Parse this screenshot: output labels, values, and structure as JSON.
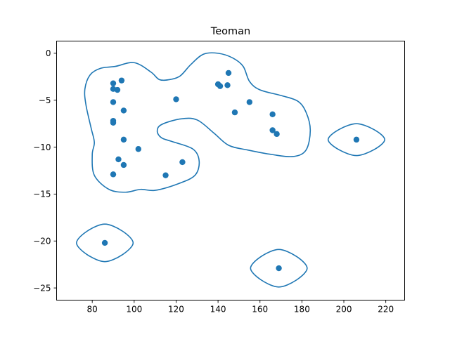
{
  "chart_data": {
    "type": "scatter",
    "title": "Teoman",
    "xlabel": "",
    "ylabel": "",
    "xlim": [
      63,
      229
    ],
    "ylim": [
      -26.3,
      1.3
    ],
    "xticks": [
      80,
      100,
      120,
      140,
      160,
      180,
      200,
      220
    ],
    "yticks": [
      0,
      -5,
      -10,
      -15,
      -20,
      -25
    ],
    "grid": false,
    "colors": {
      "series": "#1f77b4",
      "axes": "#000000",
      "background": "#ffffff"
    },
    "series": [
      {
        "points": [
          [
            86,
            -20.2
          ],
          [
            90,
            -3.2
          ],
          [
            90,
            -3.8
          ],
          [
            90,
            -5.2
          ],
          [
            90,
            -7.2
          ],
          [
            90,
            -7.4
          ],
          [
            90,
            -12.9
          ],
          [
            92,
            -3.9
          ],
          [
            92.5,
            -11.3
          ],
          [
            94,
            -2.9
          ],
          [
            95,
            -6.1
          ],
          [
            95,
            -9.2
          ],
          [
            95,
            -11.9
          ],
          [
            102,
            -10.2
          ],
          [
            115,
            -13
          ],
          [
            120,
            -4.9
          ],
          [
            123,
            -11.6
          ],
          [
            140,
            -3.3
          ],
          [
            141,
            -3.5
          ],
          [
            144.5,
            -3.4
          ],
          [
            145,
            -2.1
          ],
          [
            148,
            -6.3
          ],
          [
            155,
            -5.2
          ],
          [
            166,
            -6.5
          ],
          [
            166,
            -8.2
          ],
          [
            168,
            -8.6
          ],
          [
            169,
            -22.9
          ],
          [
            206,
            -9.2
          ]
        ]
      }
    ],
    "contours": [
      {
        "closed": true,
        "points": [
          [
            91,
            -1.4
          ],
          [
            100,
            -1
          ],
          [
            108,
            -2
          ],
          [
            112,
            -2.8
          ],
          [
            117,
            -2.8
          ],
          [
            122,
            -2.4
          ],
          [
            127,
            -1.2
          ],
          [
            133,
            -0.1
          ],
          [
            140,
            0
          ],
          [
            147,
            -0.5
          ],
          [
            152,
            -1.4
          ],
          [
            155,
            -3
          ],
          [
            160,
            -3.9
          ],
          [
            170,
            -4.5
          ],
          [
            178,
            -5.1
          ],
          [
            182,
            -6.3
          ],
          [
            184,
            -8.2
          ],
          [
            182,
            -10.3
          ],
          [
            176,
            -11
          ],
          [
            166,
            -10.8
          ],
          [
            154,
            -10.3
          ],
          [
            145,
            -9.8
          ],
          [
            138,
            -8.5
          ],
          [
            130,
            -7.1
          ],
          [
            122,
            -7
          ],
          [
            113,
            -7.6
          ],
          [
            111,
            -8.3
          ],
          [
            113,
            -9
          ],
          [
            118,
            -9.4
          ],
          [
            128,
            -10.2
          ],
          [
            131,
            -11.5
          ],
          [
            129,
            -13
          ],
          [
            121,
            -13.9
          ],
          [
            110,
            -14.6
          ],
          [
            103,
            -14.5
          ],
          [
            96,
            -14.8
          ],
          [
            88,
            -14.5
          ],
          [
            81,
            -13
          ],
          [
            80,
            -10.8
          ],
          [
            81,
            -9.5
          ],
          [
            79.5,
            -8
          ],
          [
            77,
            -5.5
          ],
          [
            76.5,
            -3.8
          ],
          [
            79,
            -2.3
          ],
          [
            84,
            -1.6
          ]
        ]
      },
      {
        "closed": true,
        "points": [
          [
            206,
            -7.5
          ],
          [
            219.5,
            -9.2
          ],
          [
            206,
            -10.9
          ],
          [
            192.5,
            -9.2
          ]
        ]
      },
      {
        "closed": true,
        "points": [
          [
            86,
            -18.2
          ],
          [
            99.5,
            -20.2
          ],
          [
            86,
            -22.2
          ],
          [
            72.5,
            -20.2
          ]
        ]
      },
      {
        "closed": true,
        "points": [
          [
            169,
            -20.9
          ],
          [
            182.5,
            -22.9
          ],
          [
            169,
            -24.9
          ],
          [
            155.5,
            -22.9
          ]
        ]
      }
    ]
  }
}
